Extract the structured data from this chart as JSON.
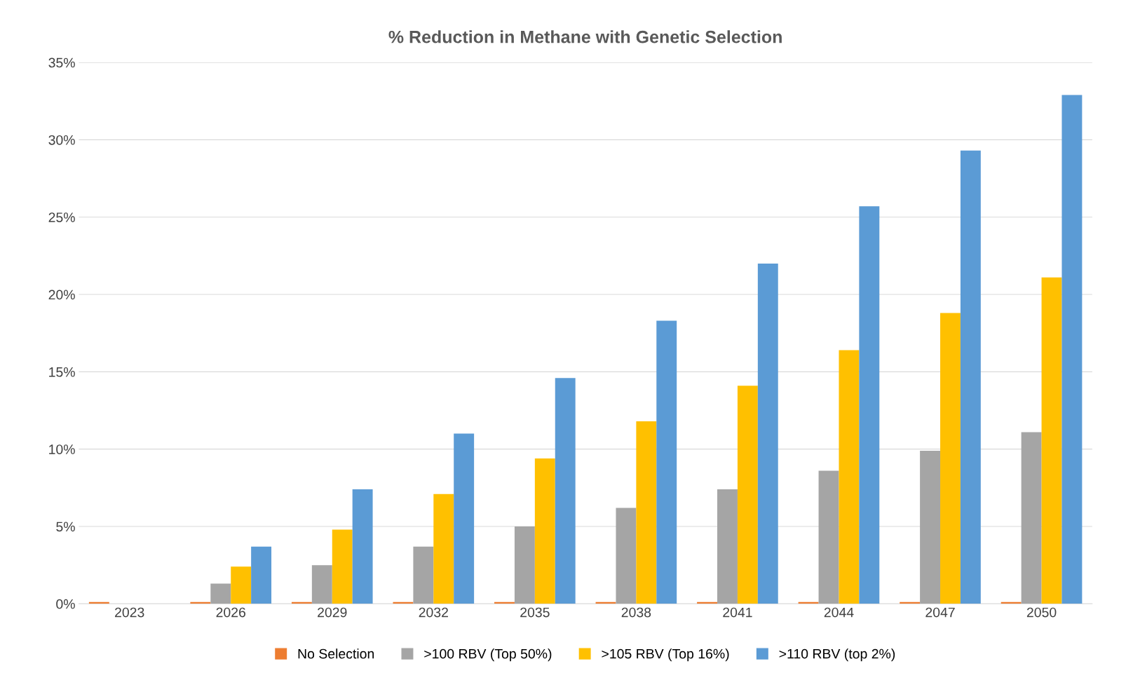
{
  "chart_data": {
    "type": "bar",
    "title": "% Reduction in Methane with Genetic Selection",
    "categories": [
      "2023",
      "2026",
      "2029",
      "2032",
      "2035",
      "2038",
      "2041",
      "2044",
      "2047",
      "2050"
    ],
    "series": [
      {
        "name": "No Selection",
        "color": "#ed7d31",
        "values": [
          0,
          0,
          0,
          0,
          0,
          0,
          0,
          0,
          0,
          0
        ]
      },
      {
        "name": ">100 RBV (Top 50%)",
        "color": "#a5a5a5",
        "values": [
          0,
          1.3,
          2.5,
          3.7,
          5.0,
          6.2,
          7.4,
          8.6,
          9.9,
          11.1
        ]
      },
      {
        "name": ">105 RBV (Top 16%)",
        "color": "#ffc000",
        "values": [
          0,
          2.4,
          4.8,
          7.1,
          9.4,
          11.8,
          14.1,
          16.4,
          18.8,
          21.1
        ]
      },
      {
        "name": ">110 RBV (top 2%)",
        "color": "#5b9bd5",
        "values": [
          0,
          3.7,
          7.4,
          11.0,
          14.6,
          18.3,
          22.0,
          25.7,
          29.3,
          32.9
        ]
      }
    ],
    "ylim": [
      0,
      35
    ],
    "yticks": [
      {
        "value": 0,
        "label": "0%"
      },
      {
        "value": 5,
        "label": "5%"
      },
      {
        "value": 10,
        "label": "10%"
      },
      {
        "value": 15,
        "label": "15%"
      },
      {
        "value": 20,
        "label": "20%"
      },
      {
        "value": 25,
        "label": "25%"
      },
      {
        "value": 30,
        "label": "30%"
      },
      {
        "value": 35,
        "label": "35%"
      }
    ],
    "grid": "y",
    "legend": "bottom"
  }
}
